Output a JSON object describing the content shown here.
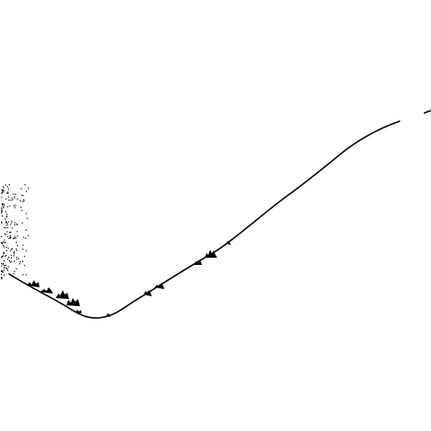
{
  "image": {
    "background": "#ffffff",
    "ink": "#000000",
    "subject": "ridge-line"
  }
}
